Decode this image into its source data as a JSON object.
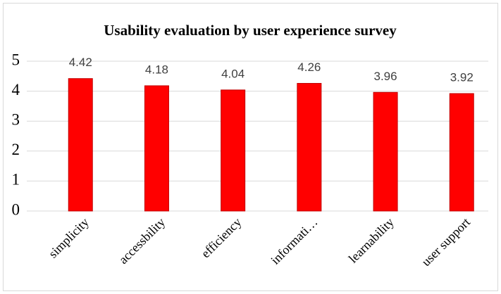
{
  "chart_data": {
    "type": "bar",
    "title": "Usability evaluation by user experience survey",
    "categories": [
      "simplicity",
      "accessbility",
      "efficiency",
      "informati…",
      "learnability",
      "user support"
    ],
    "values": [
      4.42,
      4.18,
      4.04,
      4.26,
      3.96,
      3.92
    ],
    "color": "#ff0000",
    "ylim": [
      0,
      5
    ],
    "yticks": [
      0,
      1,
      2,
      3,
      4,
      5
    ],
    "grid": true
  }
}
